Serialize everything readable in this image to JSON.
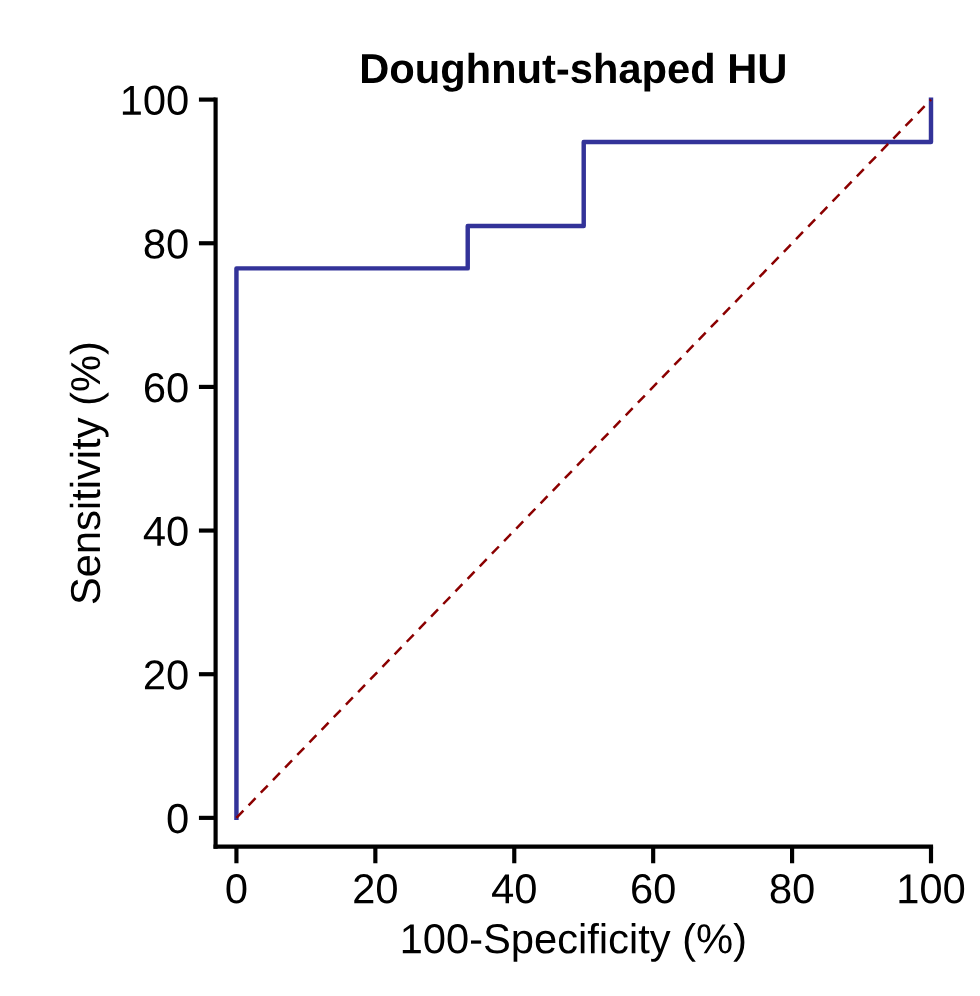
{
  "chart_data": {
    "type": "line",
    "title": "Doughnut-shaped HU",
    "xlabel": "100-Specificity (%)",
    "ylabel": "Sensitivity (%)",
    "series": [
      {
        "color": "#333399",
        "x": [
          0,
          0,
          33.3,
          33.3,
          50,
          50,
          100,
          100
        ],
        "values": [
          0,
          76.5,
          76.5,
          82.4,
          82.4,
          94.1,
          94.1,
          100
        ],
        "line_style": "solid"
      },
      {
        "color": "#8b0000",
        "x": [
          0,
          100
        ],
        "values": [
          0,
          100
        ],
        "line_style": "dashed"
      }
    ],
    "xlim": [
      -3,
      100
    ],
    "ylim": [
      -4,
      100
    ],
    "xticks": [
      0,
      20,
      40,
      60,
      80,
      100
    ],
    "yticks": [
      0,
      20,
      40,
      60,
      80,
      100
    ],
    "grid": false,
    "legend": false,
    "marker": "none"
  }
}
